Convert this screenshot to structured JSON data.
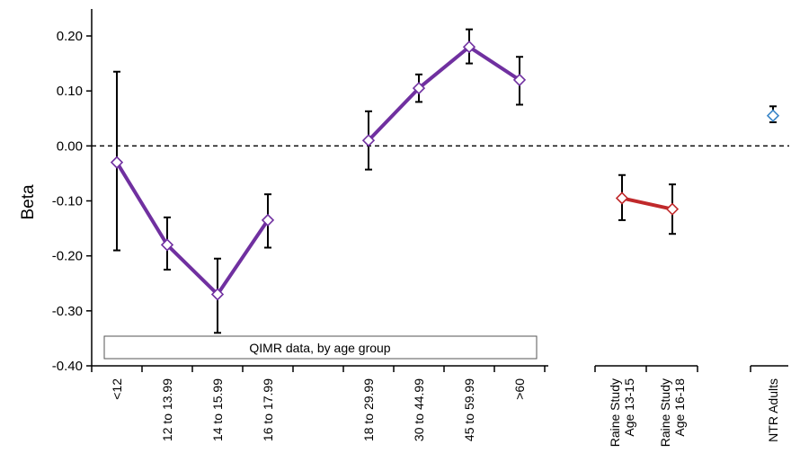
{
  "chart_data": {
    "type": "line",
    "title": "",
    "xlabel": "",
    "ylabel": "Beta",
    "ylim": [
      -0.4,
      0.2
    ],
    "yticks": [
      "0.20",
      "0.10",
      "0.00",
      "-0.10",
      "-0.20",
      "-0.30",
      "-0.40"
    ],
    "reference_line": 0.0,
    "groups": [
      {
        "id": "qimr",
        "label": "QIMR data, by age group",
        "color": "#7030A0",
        "categories": [
          "<12",
          "12 to 13.99",
          "14 to 15.99",
          "16 to 17.99"
        ],
        "values": [
          -0.03,
          -0.18,
          -0.27,
          -0.135
        ],
        "error_low": [
          -0.19,
          -0.225,
          -0.34,
          -0.185
        ],
        "error_high": [
          0.135,
          -0.13,
          -0.205,
          -0.088
        ]
      },
      {
        "id": "qimr-adult",
        "color": "#7030A0",
        "categories": [
          "18 to 29.99",
          "30 to 44.99",
          "45 to 59.99",
          ">60"
        ],
        "values": [
          0.01,
          0.105,
          0.18,
          0.12
        ],
        "error_low": [
          -0.043,
          0.08,
          0.15,
          0.075
        ],
        "error_high": [
          0.063,
          0.13,
          0.212,
          0.162
        ]
      },
      {
        "id": "raine",
        "color": "#C0292B",
        "categories": [
          "Raine Study\nAge 13-15",
          "Raine Study\nAge 16-18"
        ],
        "values": [
          -0.095,
          -0.115
        ],
        "error_low": [
          -0.135,
          -0.16
        ],
        "error_high": [
          -0.053,
          -0.07
        ]
      },
      {
        "id": "ntr",
        "color": "#3A86C8",
        "categories": [
          "NTR Adults"
        ],
        "values": [
          0.055
        ],
        "error_low": [
          0.043
        ],
        "error_high": [
          0.072
        ]
      }
    ]
  }
}
